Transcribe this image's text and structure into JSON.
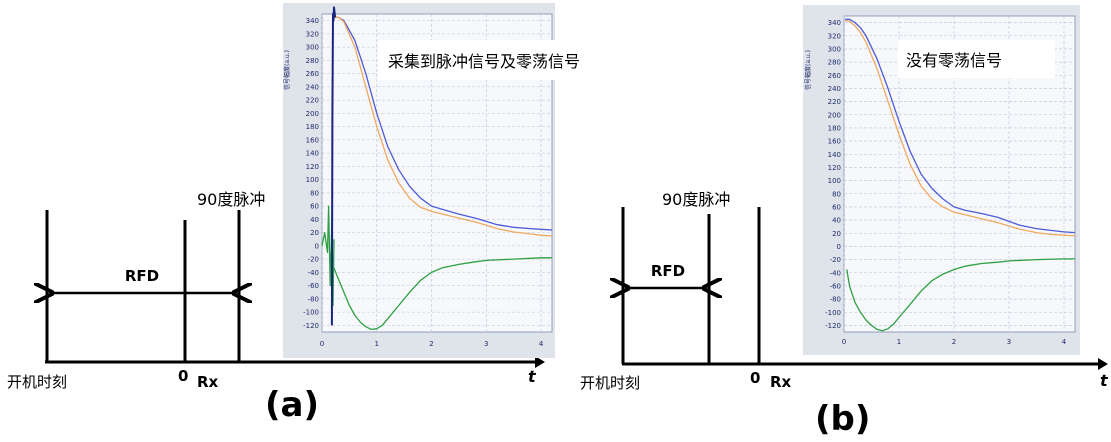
{
  "panels": [
    {
      "id": "a",
      "caption": "(a)",
      "pulse_label": "90度脉冲",
      "rfd_label": "RFD",
      "t_label": "t",
      "start_label": "开机时刻",
      "zero_label": "0",
      "rx_label": "Rx",
      "plot_annotation": "采集到脉冲信号及零荡信号"
    },
    {
      "id": "b",
      "caption": "(b)",
      "pulse_label": "90度脉冲",
      "rfd_label": "RFD",
      "t_label": "t",
      "start_label": "开机时刻",
      "zero_label": "0",
      "rx_label": "Rx",
      "plot_annotation": "没有零荡信号"
    }
  ],
  "chart_data": [
    {
      "type": "line",
      "panel": "a",
      "ylabel": "信号幅度(a.u.)",
      "x_ticks": [
        "0",
        "1",
        "2",
        "3",
        "4"
      ],
      "y_ticks": [
        "340",
        "320",
        "300",
        "280",
        "260",
        "240",
        "220",
        "200",
        "180",
        "160",
        "140",
        "120",
        "100",
        "80",
        "60",
        "40",
        "20",
        "0",
        "-20",
        "-40",
        "-60",
        "-80",
        "-100",
        "-120"
      ],
      "xlim": [
        0,
        4.2
      ],
      "ylim": [
        -130,
        350
      ],
      "grid": true,
      "colors": {
        "blue": "#4d5bd6",
        "orange": "#f0a860",
        "green": "#2ea043",
        "navy": "#1a237e"
      },
      "series": [
        {
          "color": "blue",
          "x": [
            0.22,
            0.3,
            0.4,
            0.6,
            0.8,
            1.0,
            1.2,
            1.4,
            1.6,
            1.8,
            2.0,
            2.2,
            2.5,
            2.8,
            3.0,
            3.2,
            3.5,
            3.8,
            4.0,
            4.2
          ],
          "y": [
            345,
            345,
            340,
            310,
            260,
            200,
            150,
            115,
            90,
            72,
            60,
            55,
            48,
            42,
            37,
            32,
            28,
            26,
            25,
            24
          ]
        },
        {
          "color": "orange",
          "x": [
            0.22,
            0.3,
            0.4,
            0.6,
            0.8,
            1.0,
            1.2,
            1.4,
            1.6,
            1.8,
            2.0,
            2.2,
            2.5,
            2.8,
            3.0,
            3.2,
            3.5,
            3.8,
            4.0,
            4.2
          ],
          "y": [
            345,
            345,
            338,
            300,
            240,
            180,
            130,
            95,
            72,
            58,
            52,
            48,
            42,
            36,
            31,
            26,
            21,
            18,
            16,
            15
          ]
        },
        {
          "color": "green",
          "x": [
            0.15,
            0.2,
            0.3,
            0.4,
            0.5,
            0.6,
            0.7,
            0.8,
            0.9,
            1.0,
            1.1,
            1.2,
            1.4,
            1.6,
            1.8,
            2.0,
            2.2,
            2.5,
            2.8,
            3.0,
            3.5,
            4.0,
            4.2
          ],
          "y": [
            -10,
            -30,
            -50,
            -70,
            -90,
            -105,
            -115,
            -122,
            -126,
            -125,
            -120,
            -110,
            -90,
            -70,
            -52,
            -40,
            -33,
            -28,
            -24,
            -22,
            -20,
            -18,
            -18
          ]
        },
        {
          "color": "green",
          "x": [
            0.0,
            0.05,
            0.1,
            0.12,
            0.15,
            0.18,
            0.2,
            0.22
          ],
          "y": [
            0,
            20,
            -10,
            60,
            -60,
            40,
            -90,
            10
          ]
        },
        {
          "color": "navy",
          "x": [
            0.18,
            0.19,
            0.2,
            0.21,
            0.22,
            0.24
          ],
          "y": [
            -120,
            200,
            350,
            340,
            360,
            345
          ]
        }
      ]
    },
    {
      "type": "line",
      "panel": "b",
      "ylabel": "信号幅度(a.u.)",
      "x_ticks": [
        "0",
        "1",
        "2",
        "3",
        "4"
      ],
      "y_ticks": [
        "340",
        "320",
        "300",
        "280",
        "260",
        "240",
        "220",
        "200",
        "180",
        "160",
        "140",
        "120",
        "100",
        "80",
        "60",
        "40",
        "20",
        "0",
        "-20",
        "-40",
        "-60",
        "-80",
        "-100",
        "-120"
      ],
      "xlim": [
        0,
        4.2
      ],
      "ylim": [
        -130,
        350
      ],
      "grid": true,
      "colors": {
        "blue": "#4d5bd6",
        "orange": "#f0a860",
        "green": "#2ea043"
      },
      "series": [
        {
          "color": "blue",
          "x": [
            0.02,
            0.1,
            0.2,
            0.3,
            0.4,
            0.6,
            0.8,
            1.0,
            1.2,
            1.4,
            1.6,
            1.8,
            2.0,
            2.2,
            2.5,
            2.8,
            3.0,
            3.2,
            3.5,
            3.8,
            4.0,
            4.2
          ],
          "y": [
            345,
            345,
            340,
            332,
            320,
            285,
            240,
            190,
            145,
            110,
            88,
            72,
            60,
            55,
            50,
            44,
            38,
            32,
            27,
            24,
            22,
            21
          ]
        },
        {
          "color": "orange",
          "x": [
            0.02,
            0.1,
            0.2,
            0.3,
            0.4,
            0.6,
            0.8,
            1.0,
            1.2,
            1.4,
            1.6,
            1.8,
            2.0,
            2.2,
            2.5,
            2.8,
            3.0,
            3.2,
            3.5,
            3.8,
            4.0,
            4.2
          ],
          "y": [
            343,
            342,
            335,
            325,
            310,
            270,
            220,
            170,
            125,
            92,
            72,
            60,
            52,
            48,
            42,
            36,
            31,
            26,
            21,
            18,
            17,
            16
          ]
        },
        {
          "color": "green",
          "x": [
            0.05,
            0.1,
            0.2,
            0.3,
            0.4,
            0.5,
            0.6,
            0.7,
            0.8,
            0.9,
            1.0,
            1.2,
            1.4,
            1.6,
            1.8,
            2.0,
            2.2,
            2.5,
            2.8,
            3.0,
            3.5,
            4.0,
            4.2
          ],
          "y": [
            -35,
            -60,
            -85,
            -100,
            -112,
            -120,
            -126,
            -128,
            -125,
            -118,
            -108,
            -88,
            -68,
            -52,
            -42,
            -35,
            -30,
            -26,
            -24,
            -22,
            -20,
            -19,
            -19
          ]
        }
      ]
    }
  ]
}
